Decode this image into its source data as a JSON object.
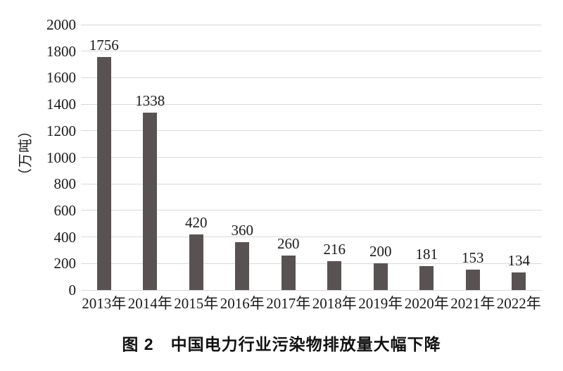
{
  "chart_data": {
    "type": "bar",
    "categories": [
      "2013年",
      "2014年",
      "2015年",
      "2016年",
      "2017年",
      "2018年",
      "2019年",
      "2020年",
      "2021年",
      "2022年"
    ],
    "values": [
      1756,
      1338,
      420,
      360,
      260,
      216,
      200,
      181,
      153,
      134
    ],
    "title": "图 2　中国电力行业污染物排放量大幅下降",
    "xlabel": "",
    "ylabel": "（万吨）",
    "ylim": [
      0,
      2000
    ],
    "yticks": [
      0,
      200,
      400,
      600,
      800,
      1000,
      1200,
      1400,
      1600,
      1800,
      2000
    ],
    "grid": true,
    "legend": "none",
    "bar_color": "#585352",
    "gridline_color": "#d9d9d9",
    "text_color": "#1a1a1a"
  }
}
